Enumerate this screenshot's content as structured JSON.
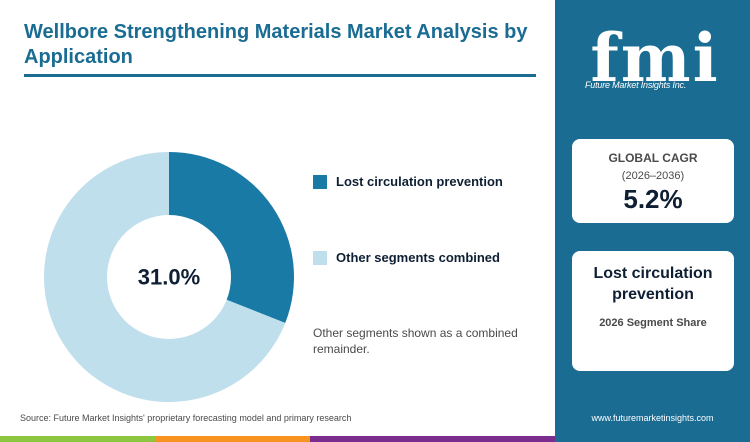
{
  "title": "Wellbore Strengthening Materials Market Analysis by Application",
  "center_label": "31.0%",
  "note": "Other segments shown as a combined remainder.",
  "source": "Source: Future Market Insights' proprietary forecasting model and primary research",
  "chart_data": {
    "type": "pie",
    "donut": true,
    "categories": [
      "Lost circulation prevention",
      "Other segments combined"
    ],
    "values": [
      31.0,
      69.0
    ],
    "colors": [
      "#1a7aa6",
      "#bfdfed"
    ],
    "legend_position": "right"
  },
  "sidebar": {
    "logo_text": "fmi",
    "logo_subtitle": "Future Market Insights Inc.",
    "cagr_label": "GLOBAL CAGR",
    "cagr_period": "(2026–2036)",
    "cagr_value": "5.2%",
    "segment_name": "Lost circulation prevention",
    "segment_sub": "2026 Segment Share",
    "website": "www.futuremarketinsights.com"
  },
  "colors": {
    "accent": "#1a6c93",
    "slice_primary": "#1a7aa6",
    "slice_secondary": "#bfdfed",
    "bar_green": "#8dc63f",
    "bar_orange": "#f7931e",
    "bar_purple": "#7b2d8e"
  }
}
